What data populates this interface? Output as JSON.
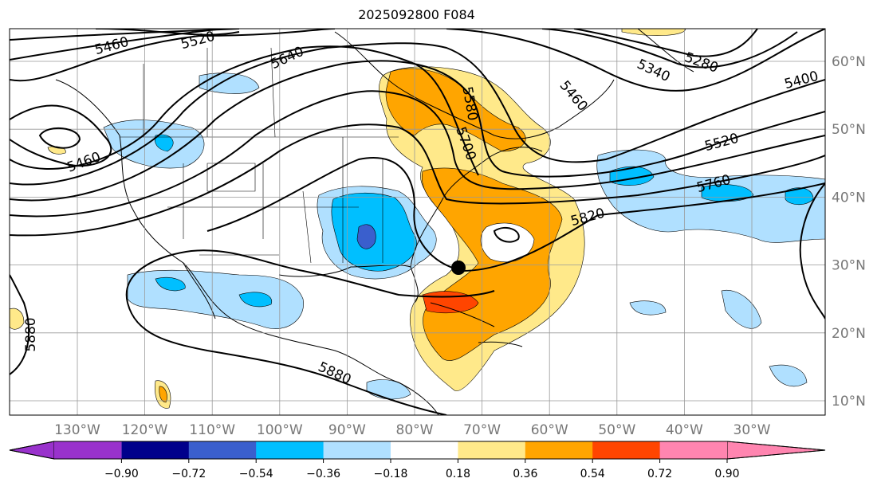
{
  "title": "2025092800 F084",
  "lon_labels": [
    "130°W",
    "120°W",
    "110°W",
    "100°W",
    "90°W",
    "80°W",
    "70°W",
    "60°W",
    "50°W",
    "40°W",
    "30°W"
  ],
  "lat_labels": [
    "60°N",
    "50°N",
    "40°N",
    "30°N",
    "20°N",
    "10°N"
  ],
  "contour_labels": [
    "5460",
    "5520",
    "5640",
    "5460",
    "5580",
    "5700",
    "5460",
    "5340",
    "5280",
    "5400",
    "5520",
    "5760",
    "5820",
    "5880",
    "5880"
  ],
  "colorbar": {
    "colors": [
      "#9932CC",
      "#00008B",
      "#3A5FCD",
      "#00BFFF",
      "#B0E0FF",
      "#FFFFFF",
      "#FFE98A",
      "#FFA500",
      "#FF4500",
      "#B22222",
      "#FF85B0"
    ],
    "ticks": [
      "−0.90",
      "−0.72",
      "−0.54",
      "−0.36",
      "−0.18",
      "0.18",
      "0.36",
      "0.54",
      "0.72",
      "0.90"
    ]
  },
  "marker": "storm-center-dot"
}
